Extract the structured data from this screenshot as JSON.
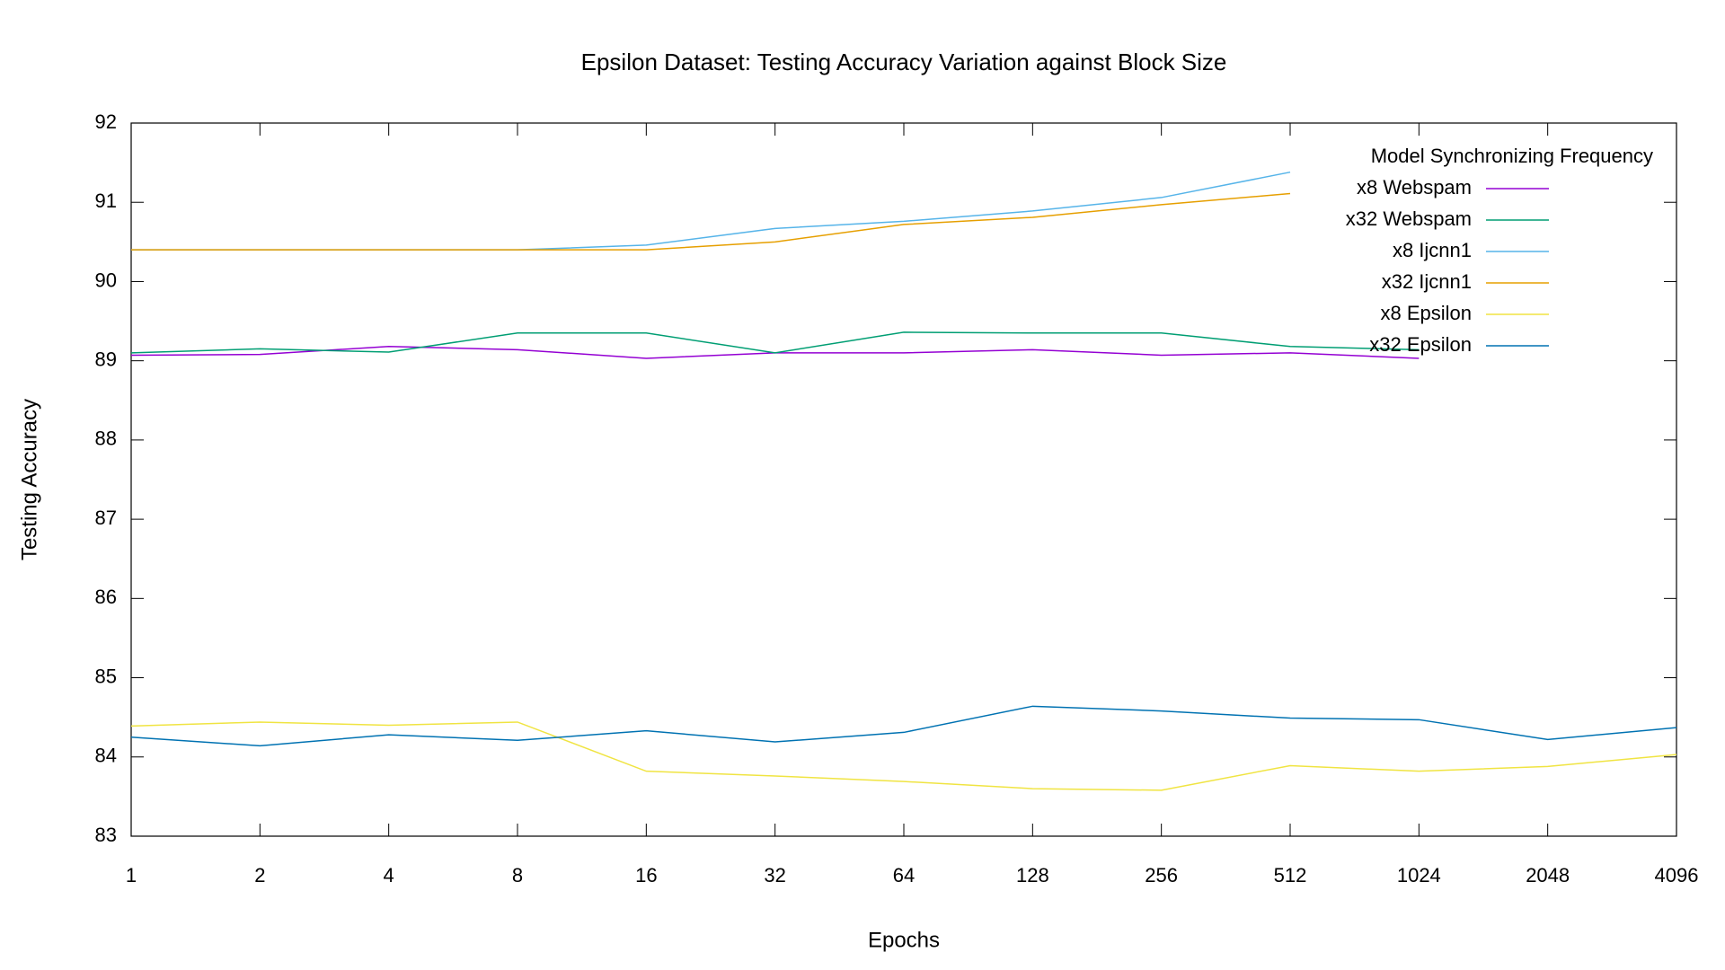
{
  "chart_data": {
    "type": "line",
    "title": "Epsilon Dataset: Testing  Accuracy Variation against Block Size",
    "x_label": "Epochs",
    "y_label": "Testing Accuracy",
    "legend_title": "Model Synchronizing Frequency",
    "legend_position": "upper right",
    "x": [
      1,
      2,
      4,
      8,
      16,
      32,
      64,
      128,
      256,
      512,
      1024,
      2048,
      4096
    ],
    "xscale": "log",
    "xlim": [
      1,
      4096
    ],
    "xticks": [
      1,
      2,
      4,
      8,
      16,
      32,
      64,
      128,
      256,
      512,
      1024,
      2048,
      4096
    ],
    "ylim": [
      83,
      92
    ],
    "yticks": [
      83,
      84,
      85,
      86,
      87,
      88,
      89,
      90,
      91,
      92
    ],
    "grid": false,
    "series": [
      {
        "name": "x8 Webspam",
        "color": "#9400d3",
        "values": [
          89.07,
          89.08,
          89.18,
          89.14,
          89.03,
          89.1,
          89.1,
          89.14,
          89.07,
          89.1,
          89.03,
          null,
          null
        ]
      },
      {
        "name": "x32 Webspam",
        "color": "#009e73",
        "values": [
          89.1,
          89.15,
          89.11,
          89.35,
          89.35,
          89.1,
          89.36,
          89.35,
          89.35,
          89.18,
          89.14,
          null,
          null
        ]
      },
      {
        "name": "x8 Ijcnn1",
        "color": "#56b4e9",
        "values": [
          90.4,
          90.4,
          90.4,
          90.4,
          90.46,
          90.67,
          90.76,
          90.89,
          91.06,
          91.38,
          null,
          null,
          null
        ]
      },
      {
        "name": "x32 Ijcnn1",
        "color": "#e69f00",
        "values": [
          90.4,
          90.4,
          90.4,
          90.4,
          90.4,
          90.5,
          90.72,
          90.81,
          90.97,
          91.11,
          null,
          null,
          null
        ]
      },
      {
        "name": "x8 Epsilon",
        "color": "#f0e442",
        "values": [
          84.39,
          84.44,
          84.4,
          84.44,
          83.82,
          83.76,
          83.69,
          83.6,
          83.58,
          83.89,
          83.82,
          83.88,
          84.03
        ]
      },
      {
        "name": "x32 Epsilon",
        "color": "#0072b2",
        "values": [
          84.25,
          84.14,
          84.28,
          84.21,
          84.33,
          84.19,
          84.31,
          84.64,
          84.58,
          84.49,
          84.47,
          84.22,
          84.37
        ]
      }
    ]
  }
}
